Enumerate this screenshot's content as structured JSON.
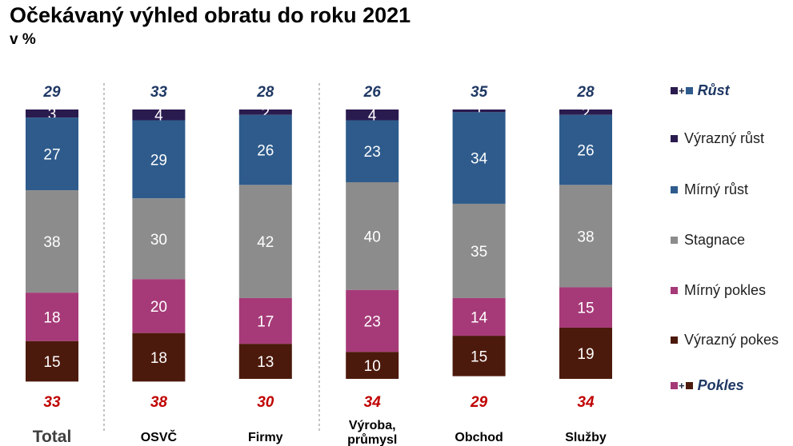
{
  "title": "Očekávaný výhled obratu do roku 2021",
  "subtitle": "v %",
  "legend": [
    {
      "label": "Růst",
      "aggregate": true,
      "colors": [
        "#2a1b4f",
        "#2e5b8c"
      ]
    },
    {
      "label": "Výrazný růst",
      "aggregate": false,
      "colors": [
        "#2a1b4f"
      ]
    },
    {
      "label": "Mírný růst",
      "aggregate": false,
      "colors": [
        "#2e5b8c"
      ]
    },
    {
      "label": "Stagnace",
      "aggregate": false,
      "colors": [
        "#8c8c8c"
      ]
    },
    {
      "label": "Mírný pokles",
      "aggregate": false,
      "colors": [
        "#a63a78"
      ]
    },
    {
      "label": "Výrazný pokes",
      "aggregate": false,
      "colors": [
        "#4c1a0c"
      ]
    },
    {
      "label": "Pokles",
      "aggregate": true,
      "colors": [
        "#a63a78",
        "#4c1a0c"
      ]
    }
  ],
  "chart_data": {
    "type": "bar",
    "stacked": true,
    "categories": [
      "Total",
      "OSVČ",
      "Firmy",
      "Výroba, průmysl",
      "Obchod",
      "Služby"
    ],
    "series": [
      {
        "name": "Výrazný růst",
        "color": "#2a1b4f",
        "values": [
          3,
          4,
          2,
          4,
          1,
          2
        ]
      },
      {
        "name": "Mírný růst",
        "color": "#2e5b8c",
        "values": [
          27,
          29,
          26,
          23,
          34,
          26
        ]
      },
      {
        "name": "Stagnace",
        "color": "#8c8c8c",
        "values": [
          38,
          30,
          42,
          40,
          35,
          38
        ]
      },
      {
        "name": "Mírný pokles",
        "color": "#a63a78",
        "values": [
          18,
          20,
          17,
          23,
          14,
          15
        ]
      },
      {
        "name": "Výrazný pokes",
        "color": "#4c1a0c",
        "values": [
          15,
          18,
          13,
          10,
          15,
          19
        ]
      }
    ],
    "growth_totals": [
      29,
      33,
      28,
      26,
      35,
      28
    ],
    "decline_totals": [
      33,
      38,
      30,
      34,
      29,
      34
    ],
    "growth_color": "#1f3864",
    "decline_color": "#c00000",
    "ylim": [
      0,
      100
    ]
  }
}
